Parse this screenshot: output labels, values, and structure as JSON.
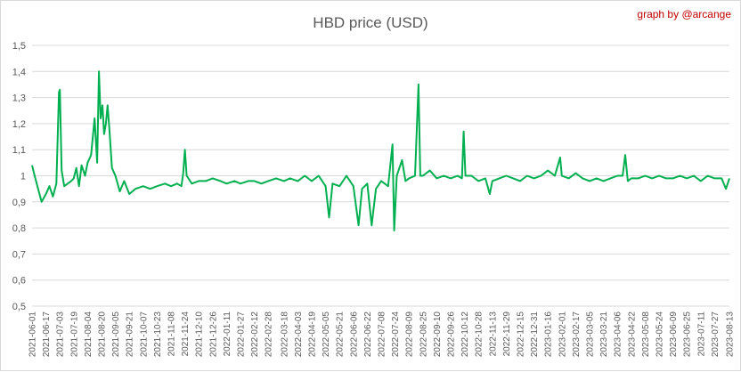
{
  "chart_data": {
    "type": "line",
    "title": "HBD price (USD)",
    "credit": "graph by @arcange",
    "xlabel": "",
    "ylabel": "",
    "ylim": [
      0.5,
      1.5
    ],
    "yticks": [
      "0,5",
      "0,6",
      "0,7",
      "0,8",
      "0,9",
      "1",
      "1,1",
      "1,2",
      "1,3",
      "1,4",
      "1,5"
    ],
    "grid": true,
    "legend": "none",
    "line_color": "#00b050",
    "x_tick_labels": [
      "2021-06-01",
      "2021-06-17",
      "2021-07-03",
      "2021-07-19",
      "2021-08-04",
      "2021-08-20",
      "2021-09-05",
      "2021-09-21",
      "2021-10-07",
      "2021-10-23",
      "2021-11-08",
      "2021-11-24",
      "2021-12-10",
      "2021-12-26",
      "2022-01-11",
      "2022-01-27",
      "2022-02-12",
      "2022-02-28",
      "2022-03-18",
      "2022-04-03",
      "2022-04-19",
      "2022-05-05",
      "2022-05-21",
      "2022-06-06",
      "2022-06-22",
      "2022-07-08",
      "2022-07-24",
      "2022-08-09",
      "2022-08-25",
      "2022-09-10",
      "2022-09-26",
      "2022-10-12",
      "2022-10-28",
      "2022-11-13",
      "2022-11-29",
      "2022-12-15",
      "2022-12-31",
      "2023-01-16",
      "2023-02-01",
      "2023-02-17",
      "2023-03-05",
      "2023-03-21",
      "2023-04-06",
      "2023-04-22",
      "2023-05-08",
      "2023-05-24",
      "2023-06-09",
      "2023-06-25",
      "2023-07-11",
      "2023-07-27",
      "2023-08-13"
    ],
    "series": [
      {
        "points": [
          [
            "2021-06-01",
            1.04
          ],
          [
            "2021-06-04",
            1.0
          ],
          [
            "2021-06-08",
            0.95
          ],
          [
            "2021-06-12",
            0.9
          ],
          [
            "2021-06-17",
            0.93
          ],
          [
            "2021-06-21",
            0.96
          ],
          [
            "2021-06-25",
            0.92
          ],
          [
            "2021-06-29",
            0.97
          ],
          [
            "2021-07-02",
            1.32
          ],
          [
            "2021-07-03",
            1.33
          ],
          [
            "2021-07-05",
            1.02
          ],
          [
            "2021-07-08",
            0.96
          ],
          [
            "2021-07-12",
            0.97
          ],
          [
            "2021-07-16",
            0.98
          ],
          [
            "2021-07-19",
            0.99
          ],
          [
            "2021-07-22",
            1.03
          ],
          [
            "2021-07-25",
            0.96
          ],
          [
            "2021-07-28",
            1.04
          ],
          [
            "2021-08-01",
            1.0
          ],
          [
            "2021-08-04",
            1.05
          ],
          [
            "2021-08-08",
            1.08
          ],
          [
            "2021-08-12",
            1.22
          ],
          [
            "2021-08-15",
            1.05
          ],
          [
            "2021-08-17",
            1.4
          ],
          [
            "2021-08-19",
            1.22
          ],
          [
            "2021-08-21",
            1.27
          ],
          [
            "2021-08-23",
            1.16
          ],
          [
            "2021-08-25",
            1.2
          ],
          [
            "2021-08-27",
            1.27
          ],
          [
            "2021-08-29",
            1.18
          ],
          [
            "2021-09-01",
            1.03
          ],
          [
            "2021-09-05",
            1.0
          ],
          [
            "2021-09-10",
            0.94
          ],
          [
            "2021-09-15",
            0.98
          ],
          [
            "2021-09-21",
            0.93
          ],
          [
            "2021-09-28",
            0.95
          ],
          [
            "2021-10-07",
            0.96
          ],
          [
            "2021-10-15",
            0.95
          ],
          [
            "2021-10-23",
            0.96
          ],
          [
            "2021-11-01",
            0.97
          ],
          [
            "2021-11-08",
            0.96
          ],
          [
            "2021-11-15",
            0.97
          ],
          [
            "2021-11-20",
            0.96
          ],
          [
            "2021-11-22",
            1.01
          ],
          [
            "2021-11-24",
            1.1
          ],
          [
            "2021-11-26",
            1.0
          ],
          [
            "2021-12-02",
            0.97
          ],
          [
            "2021-12-10",
            0.98
          ],
          [
            "2021-12-18",
            0.98
          ],
          [
            "2021-12-26",
            0.99
          ],
          [
            "2022-01-04",
            0.98
          ],
          [
            "2022-01-11",
            0.97
          ],
          [
            "2022-01-20",
            0.98
          ],
          [
            "2022-01-27",
            0.97
          ],
          [
            "2022-02-05",
            0.98
          ],
          [
            "2022-02-12",
            0.98
          ],
          [
            "2022-02-20",
            0.97
          ],
          [
            "2022-02-28",
            0.98
          ],
          [
            "2022-03-09",
            0.99
          ],
          [
            "2022-03-18",
            0.98
          ],
          [
            "2022-03-25",
            0.99
          ],
          [
            "2022-04-03",
            0.98
          ],
          [
            "2022-04-11",
            1.0
          ],
          [
            "2022-04-19",
            0.98
          ],
          [
            "2022-04-27",
            1.0
          ],
          [
            "2022-05-05",
            0.96
          ],
          [
            "2022-05-09",
            0.84
          ],
          [
            "2022-05-13",
            0.97
          ],
          [
            "2022-05-21",
            0.96
          ],
          [
            "2022-05-29",
            1.0
          ],
          [
            "2022-06-06",
            0.96
          ],
          [
            "2022-06-12",
            0.81
          ],
          [
            "2022-06-16",
            0.95
          ],
          [
            "2022-06-22",
            0.97
          ],
          [
            "2022-06-27",
            0.81
          ],
          [
            "2022-07-02",
            0.95
          ],
          [
            "2022-07-08",
            0.98
          ],
          [
            "2022-07-16",
            0.96
          ],
          [
            "2022-07-21",
            1.12
          ],
          [
            "2022-07-23",
            0.79
          ],
          [
            "2022-07-26",
            1.0
          ],
          [
            "2022-08-01",
            1.06
          ],
          [
            "2022-08-05",
            0.98
          ],
          [
            "2022-08-09",
            0.99
          ],
          [
            "2022-08-16",
            1.0
          ],
          [
            "2022-08-20",
            1.35
          ],
          [
            "2022-08-22",
            1.0
          ],
          [
            "2022-08-25",
            1.0
          ],
          [
            "2022-09-02",
            1.02
          ],
          [
            "2022-09-10",
            0.99
          ],
          [
            "2022-09-18",
            1.0
          ],
          [
            "2022-09-26",
            0.99
          ],
          [
            "2022-10-04",
            1.0
          ],
          [
            "2022-10-09",
            0.99
          ],
          [
            "2022-10-11",
            1.17
          ],
          [
            "2022-10-13",
            1.0
          ],
          [
            "2022-10-20",
            1.0
          ],
          [
            "2022-10-28",
            0.98
          ],
          [
            "2022-11-05",
            0.99
          ],
          [
            "2022-11-10",
            0.93
          ],
          [
            "2022-11-13",
            0.98
          ],
          [
            "2022-11-21",
            0.99
          ],
          [
            "2022-11-29",
            1.0
          ],
          [
            "2022-12-07",
            0.99
          ],
          [
            "2022-12-15",
            0.98
          ],
          [
            "2022-12-23",
            1.0
          ],
          [
            "2022-12-31",
            0.99
          ],
          [
            "2023-01-08",
            1.0
          ],
          [
            "2023-01-16",
            1.02
          ],
          [
            "2023-01-24",
            1.0
          ],
          [
            "2023-01-30",
            1.07
          ],
          [
            "2023-02-01",
            1.0
          ],
          [
            "2023-02-09",
            0.99
          ],
          [
            "2023-02-17",
            1.01
          ],
          [
            "2023-02-25",
            0.99
          ],
          [
            "2023-03-05",
            0.98
          ],
          [
            "2023-03-13",
            0.99
          ],
          [
            "2023-03-21",
            0.98
          ],
          [
            "2023-03-29",
            0.99
          ],
          [
            "2023-04-06",
            1.0
          ],
          [
            "2023-04-12",
            1.0
          ],
          [
            "2023-04-15",
            1.08
          ],
          [
            "2023-04-18",
            0.98
          ],
          [
            "2023-04-22",
            0.99
          ],
          [
            "2023-04-30",
            0.99
          ],
          [
            "2023-05-08",
            1.0
          ],
          [
            "2023-05-16",
            0.99
          ],
          [
            "2023-05-24",
            1.0
          ],
          [
            "2023-06-01",
            0.99
          ],
          [
            "2023-06-09",
            0.99
          ],
          [
            "2023-06-17",
            1.0
          ],
          [
            "2023-06-25",
            0.99
          ],
          [
            "2023-07-03",
            1.0
          ],
          [
            "2023-07-11",
            0.98
          ],
          [
            "2023-07-19",
            1.0
          ],
          [
            "2023-07-27",
            0.99
          ],
          [
            "2023-08-04",
            0.99
          ],
          [
            "2023-08-09",
            0.95
          ],
          [
            "2023-08-13",
            0.99
          ]
        ]
      }
    ]
  }
}
